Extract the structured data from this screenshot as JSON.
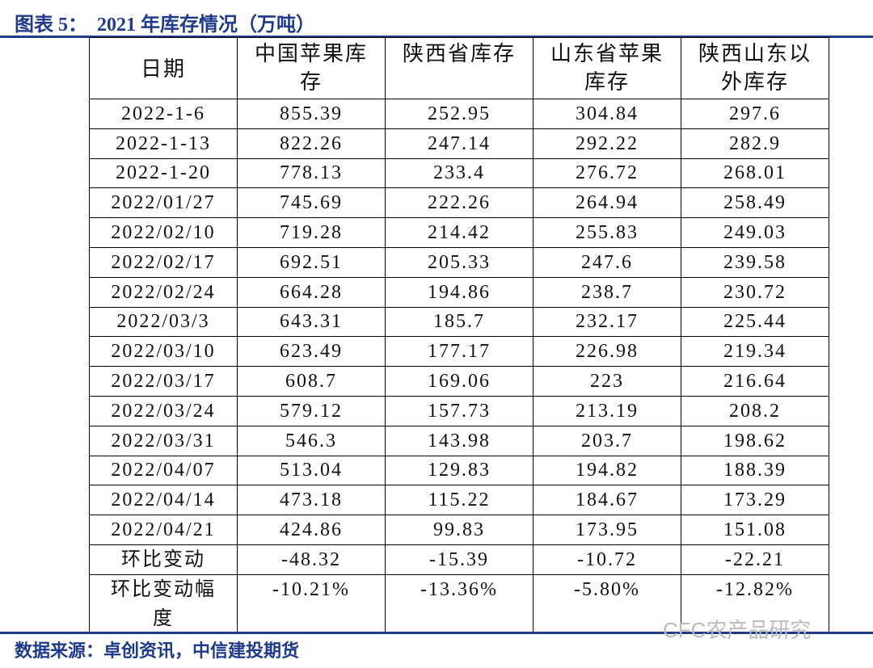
{
  "header": {
    "title": "图表 5：  2021 年库存情况（万吨）"
  },
  "table": {
    "columns": [
      "日期",
      "中国苹果库存",
      "陕西省库存",
      "山东省苹果库存",
      "陕西山东以外库存"
    ],
    "rows": [
      [
        "2022-1-6",
        "855.39",
        "252.95",
        "304.84",
        "297.6"
      ],
      [
        "2022-1-13",
        "822.26",
        "247.14",
        "292.22",
        "282.9"
      ],
      [
        "2022-1-20",
        "778.13",
        "233.4",
        "276.72",
        "268.01"
      ],
      [
        "2022/01/27",
        "745.69",
        "222.26",
        "264.94",
        "258.49"
      ],
      [
        "2022/02/10",
        "719.28",
        "214.42",
        "255.83",
        "249.03"
      ],
      [
        "2022/02/17",
        "692.51",
        "205.33",
        "247.6",
        "239.58"
      ],
      [
        "2022/02/24",
        "664.28",
        "194.86",
        "238.7",
        "230.72"
      ],
      [
        "2022/03/3",
        "643.31",
        "185.7",
        "232.17",
        "225.44"
      ],
      [
        "2022/03/10",
        "623.49",
        "177.17",
        "226.98",
        "219.34"
      ],
      [
        "2022/03/17",
        "608.7",
        "169.06",
        "223",
        "216.64"
      ],
      [
        "2022/03/24",
        "579.12",
        "157.73",
        "213.19",
        "208.2"
      ],
      [
        "2022/03/31",
        "546.3",
        "143.98",
        "203.7",
        "198.62"
      ],
      [
        "2022/04/07",
        "513.04",
        "129.83",
        "194.82",
        "188.39"
      ],
      [
        "2022/04/14",
        "473.18",
        "115.22",
        "184.67",
        "173.29"
      ],
      [
        "2022/04/21",
        "424.86",
        "99.83",
        "173.95",
        "151.08"
      ],
      [
        "环比变动",
        "-48.32",
        "-15.39",
        "-10.72",
        "-22.21"
      ],
      [
        "环比变动幅度",
        "-10.21%",
        "-13.36%",
        "-5.80%",
        "-12.82%"
      ]
    ]
  },
  "watermark": "CFC农产品研究",
  "footer": {
    "source": "数据来源：卓创资讯，中信建投期货"
  }
}
